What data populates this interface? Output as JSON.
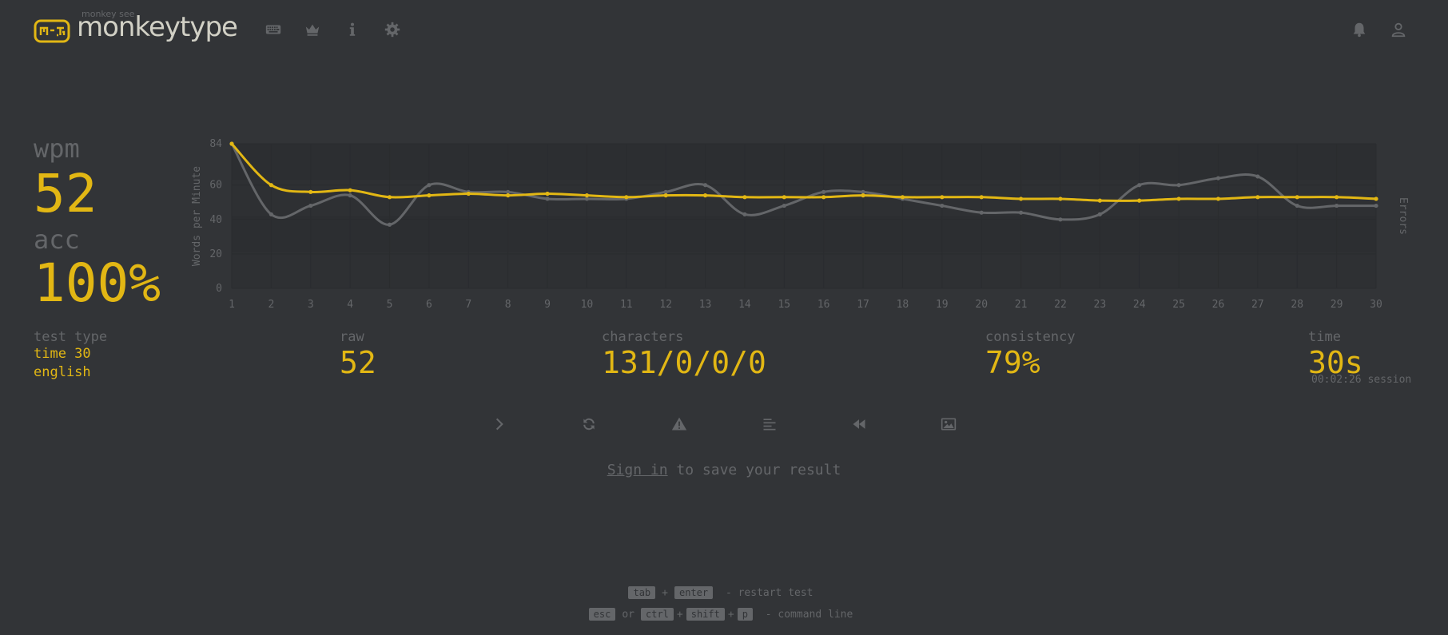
{
  "header": {
    "logo_small": "monkey see",
    "logo_text": "monkeytype",
    "nav": [
      "keyboard-icon",
      "crown-icon",
      "info-icon",
      "gear-icon"
    ],
    "right": [
      "bell-icon",
      "user-icon"
    ]
  },
  "result": {
    "wpm_label": "wpm",
    "wpm_value": "52",
    "acc_label": "acc",
    "acc_value": "100%",
    "test_type_label": "test type",
    "test_type_mode": "time 30",
    "test_type_lang": "english",
    "raw_label": "raw",
    "raw_value": "52",
    "characters_label": "characters",
    "characters_value": "131/0/0/0",
    "consistency_label": "consistency",
    "consistency_value": "79%",
    "time_label": "time",
    "time_value": "30s",
    "session_text": "00:02:26 session"
  },
  "buttons": [
    "next-test",
    "restart",
    "report",
    "words-history",
    "replay",
    "screenshot"
  ],
  "signin": {
    "link": "Sign in",
    "rest": " to save your result"
  },
  "footer": {
    "line1": {
      "k1": "tab",
      "plus": "+",
      "k2": "enter",
      "text": "- restart test"
    },
    "line2": {
      "k1": "esc",
      "or": "or",
      "k2": "ctrl",
      "plus1": "+",
      "k3": "shift",
      "plus2": "+",
      "k4": "p",
      "text": "- command line"
    }
  },
  "colors": {
    "background": "#323437",
    "accent": "#e2b714",
    "sub": "#646669",
    "text": "#d1d0c5"
  },
  "chart_data": {
    "type": "line",
    "ylabel": "Words per Minute",
    "y2label": "Errors",
    "ylim": [
      0,
      84
    ],
    "yticks": [
      0,
      20,
      40,
      60,
      84
    ],
    "x": [
      1,
      2,
      3,
      4,
      5,
      6,
      7,
      8,
      9,
      10,
      11,
      12,
      13,
      14,
      15,
      16,
      17,
      18,
      19,
      20,
      21,
      22,
      23,
      24,
      25,
      26,
      27,
      28,
      29,
      30
    ],
    "grid": true,
    "series": [
      {
        "name": "wpm",
        "color": "#e2b714",
        "values": [
          84,
          60,
          56,
          57,
          53,
          54,
          55,
          54,
          55,
          54,
          53,
          54,
          54,
          53,
          53,
          53,
          54,
          53,
          53,
          53,
          52,
          52,
          51,
          51,
          52,
          52,
          53,
          53,
          53,
          52
        ]
      },
      {
        "name": "raw",
        "color": "#646669",
        "values": [
          84,
          43,
          48,
          54,
          37,
          60,
          56,
          56,
          52,
          52,
          52,
          56,
          60,
          43,
          48,
          56,
          56,
          52,
          48,
          44,
          44,
          40,
          43,
          60,
          60,
          64,
          65,
          48,
          48,
          48
        ]
      }
    ]
  }
}
